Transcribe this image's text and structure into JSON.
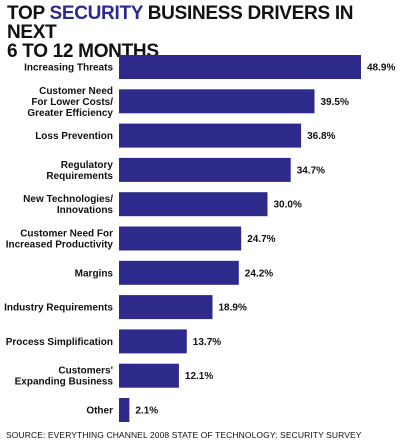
{
  "title": {
    "part1": "TOP ",
    "accent": "SECURITY",
    "part2": " BUSINESS DRIVERS IN NEXT",
    "line2": "6 TO 12 MONTHS"
  },
  "source": "SOURCE: EVERYTHING CHANNEL 2008 STATE OF TECHNOLOGY: SECURITY SURVEY",
  "colors": {
    "bar": "#2e2a8c",
    "accent": "#2e2a8c",
    "text": "#111111"
  },
  "chart_data": {
    "type": "bar",
    "orientation": "horizontal",
    "title": "TOP SECURITY BUSINESS DRIVERS IN NEXT 6 TO 12 MONTHS",
    "categories": [
      [
        "Increasing Threats"
      ],
      [
        "Customer Need",
        "For Lower Costs/",
        "Greater Efficiency"
      ],
      [
        "Loss Prevention"
      ],
      [
        "Regulatory",
        "Requirements"
      ],
      [
        "New Technologies/",
        "Innovations"
      ],
      [
        "Customer Need For",
        "Increased Productivity"
      ],
      [
        "Margins"
      ],
      [
        "Industry Requirements"
      ],
      [
        "Process Simplification"
      ],
      [
        "Customers'",
        "Expanding Business"
      ],
      [
        "Other"
      ]
    ],
    "values": [
      48.9,
      39.5,
      36.8,
      34.7,
      30.0,
      24.7,
      24.2,
      18.9,
      13.7,
      12.1,
      2.1
    ],
    "value_labels": [
      "48.9%",
      "39.5%",
      "36.8%",
      "34.7%",
      "30.0%",
      "24.7%",
      "24.2%",
      "18.9%",
      "13.7%",
      "12.1%",
      "2.1%"
    ],
    "xlim": [
      0,
      50
    ],
    "grid": false,
    "legend": "none"
  }
}
